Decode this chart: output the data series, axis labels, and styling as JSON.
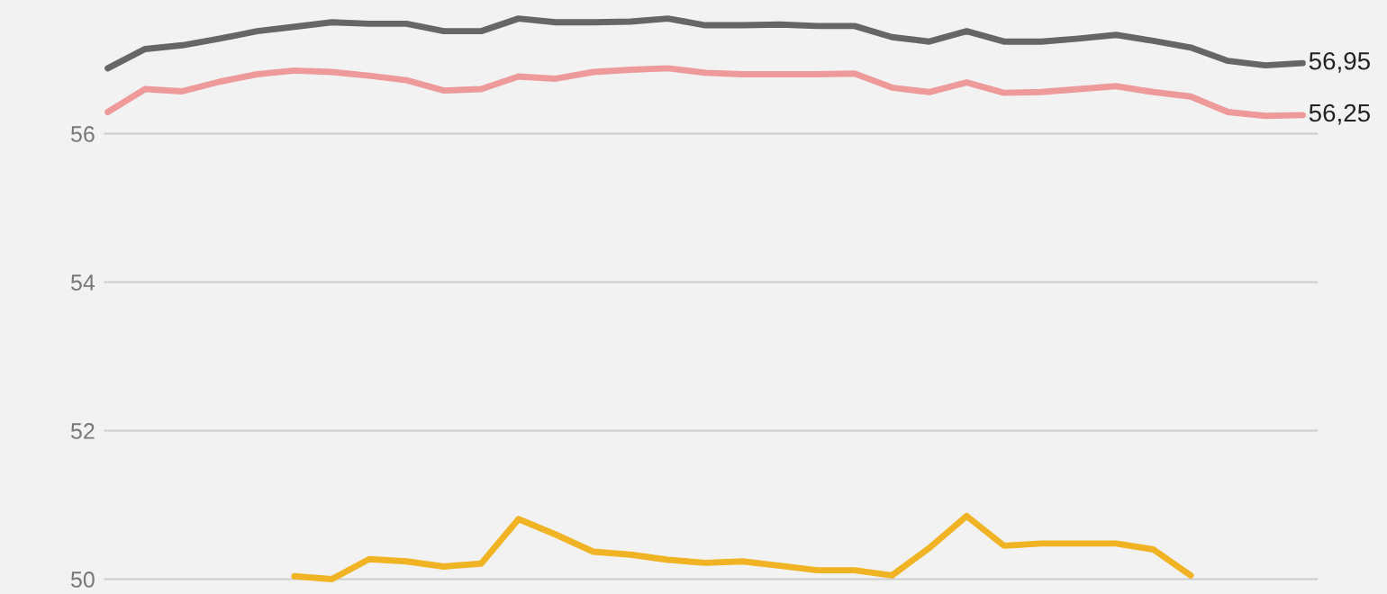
{
  "chart_data": {
    "type": "line",
    "categories": [
      null,
      null,
      null,
      null,
      null,
      null,
      null,
      null,
      null,
      null,
      null,
      null,
      null,
      null,
      null,
      null,
      null,
      null,
      null,
      null,
      null,
      null,
      null,
      null,
      null,
      null,
      null,
      null,
      null,
      null,
      null,
      null,
      null
    ],
    "series": [
      {
        "color": "#666666",
        "values": [
          56.88,
          57.14,
          57.19,
          57.28,
          57.38,
          57.44,
          57.5,
          57.48,
          57.48,
          57.38,
          57.38,
          57.55,
          57.5,
          57.5,
          57.51,
          57.55,
          57.46,
          57.46,
          57.47,
          57.45,
          57.45,
          57.3,
          57.24,
          57.38,
          57.24,
          57.24,
          57.28,
          57.33,
          57.25,
          57.16,
          56.98,
          56.92,
          56.95
        ],
        "value_labels": [
          null,
          null,
          null,
          null,
          null,
          null,
          null,
          null,
          null,
          null,
          null,
          null,
          null,
          null,
          null,
          null,
          null,
          null,
          null,
          null,
          null,
          null,
          null,
          null,
          null,
          null,
          null,
          null,
          null,
          null,
          null,
          null,
          "56,95"
        ]
      },
      {
        "color": "#ee9a9a",
        "values": [
          56.29,
          56.6,
          56.57,
          56.7,
          56.8,
          56.85,
          56.83,
          56.78,
          56.72,
          56.58,
          56.6,
          56.77,
          56.74,
          56.83,
          56.86,
          56.88,
          56.82,
          56.8,
          56.8,
          56.8,
          56.81,
          56.62,
          56.56,
          56.69,
          56.55,
          56.56,
          56.6,
          56.64,
          56.56,
          56.5,
          56.29,
          56.24,
          56.25
        ],
        "value_labels": [
          null,
          null,
          null,
          null,
          null,
          null,
          null,
          null,
          null,
          null,
          null,
          null,
          null,
          null,
          null,
          null,
          null,
          null,
          null,
          null,
          null,
          null,
          null,
          null,
          null,
          null,
          null,
          null,
          null,
          null,
          null,
          null,
          "56,25"
        ]
      },
      {
        "color": "#f0b323",
        "values": [
          null,
          null,
          null,
          null,
          null,
          50.04,
          50.0,
          50.27,
          50.24,
          50.17,
          50.21,
          50.81,
          50.6,
          50.37,
          50.33,
          50.26,
          50.22,
          50.24,
          50.18,
          50.12,
          50.12,
          50.05,
          50.42,
          50.85,
          50.45,
          50.48,
          50.48,
          50.48,
          50.4,
          50.05,
          null,
          null,
          null
        ]
      }
    ],
    "ylim": [
      49.8,
      57.8
    ],
    "yticks": [
      50,
      52,
      54,
      56
    ],
    "grid": "y",
    "tick_labels": "y",
    "legend": false,
    "marker": "none",
    "line_style": "solid"
  }
}
